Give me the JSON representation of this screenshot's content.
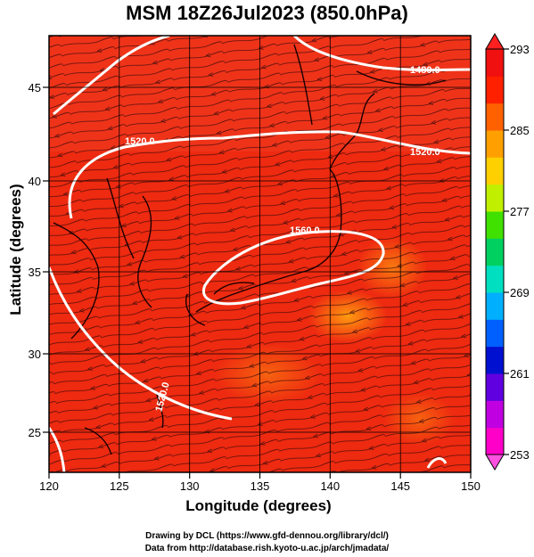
{
  "title": "MSM 18Z26Jul2023 (850.0hPa)",
  "x_axis": {
    "label": "Longitude (degrees)",
    "ticks": [
      "120",
      "125",
      "130",
      "135",
      "140",
      "145",
      "150"
    ]
  },
  "y_axis": {
    "label": "Latitude  (degrees)",
    "ticks": [
      "25",
      "30",
      "35",
      "40",
      "45"
    ]
  },
  "colorbar": {
    "ticks": [
      "293",
      "285",
      "277",
      "269",
      "261",
      "253"
    ],
    "colors": [
      "#ff00c8",
      "#c000e0",
      "#6000e0",
      "#0010d0",
      "#0060ff",
      "#00b0ff",
      "#00e0c0",
      "#00d060",
      "#40e000",
      "#c0f000",
      "#ffd000",
      "#ffa000",
      "#ff6000",
      "#ff2000",
      "#f01010"
    ]
  },
  "contours": [
    {
      "label": "1480.0"
    },
    {
      "label": "1520.0"
    },
    {
      "label": "1520.0"
    },
    {
      "label": "1560.0"
    },
    {
      "label": "1520.0"
    }
  ],
  "credits": {
    "line1": "Drawing by DCL (https://www.gfd-dennou.org/library/dcl/)",
    "line2": "Data from http://database.rish.kyoto-u.ac.jp/arch/jmadata/"
  }
}
